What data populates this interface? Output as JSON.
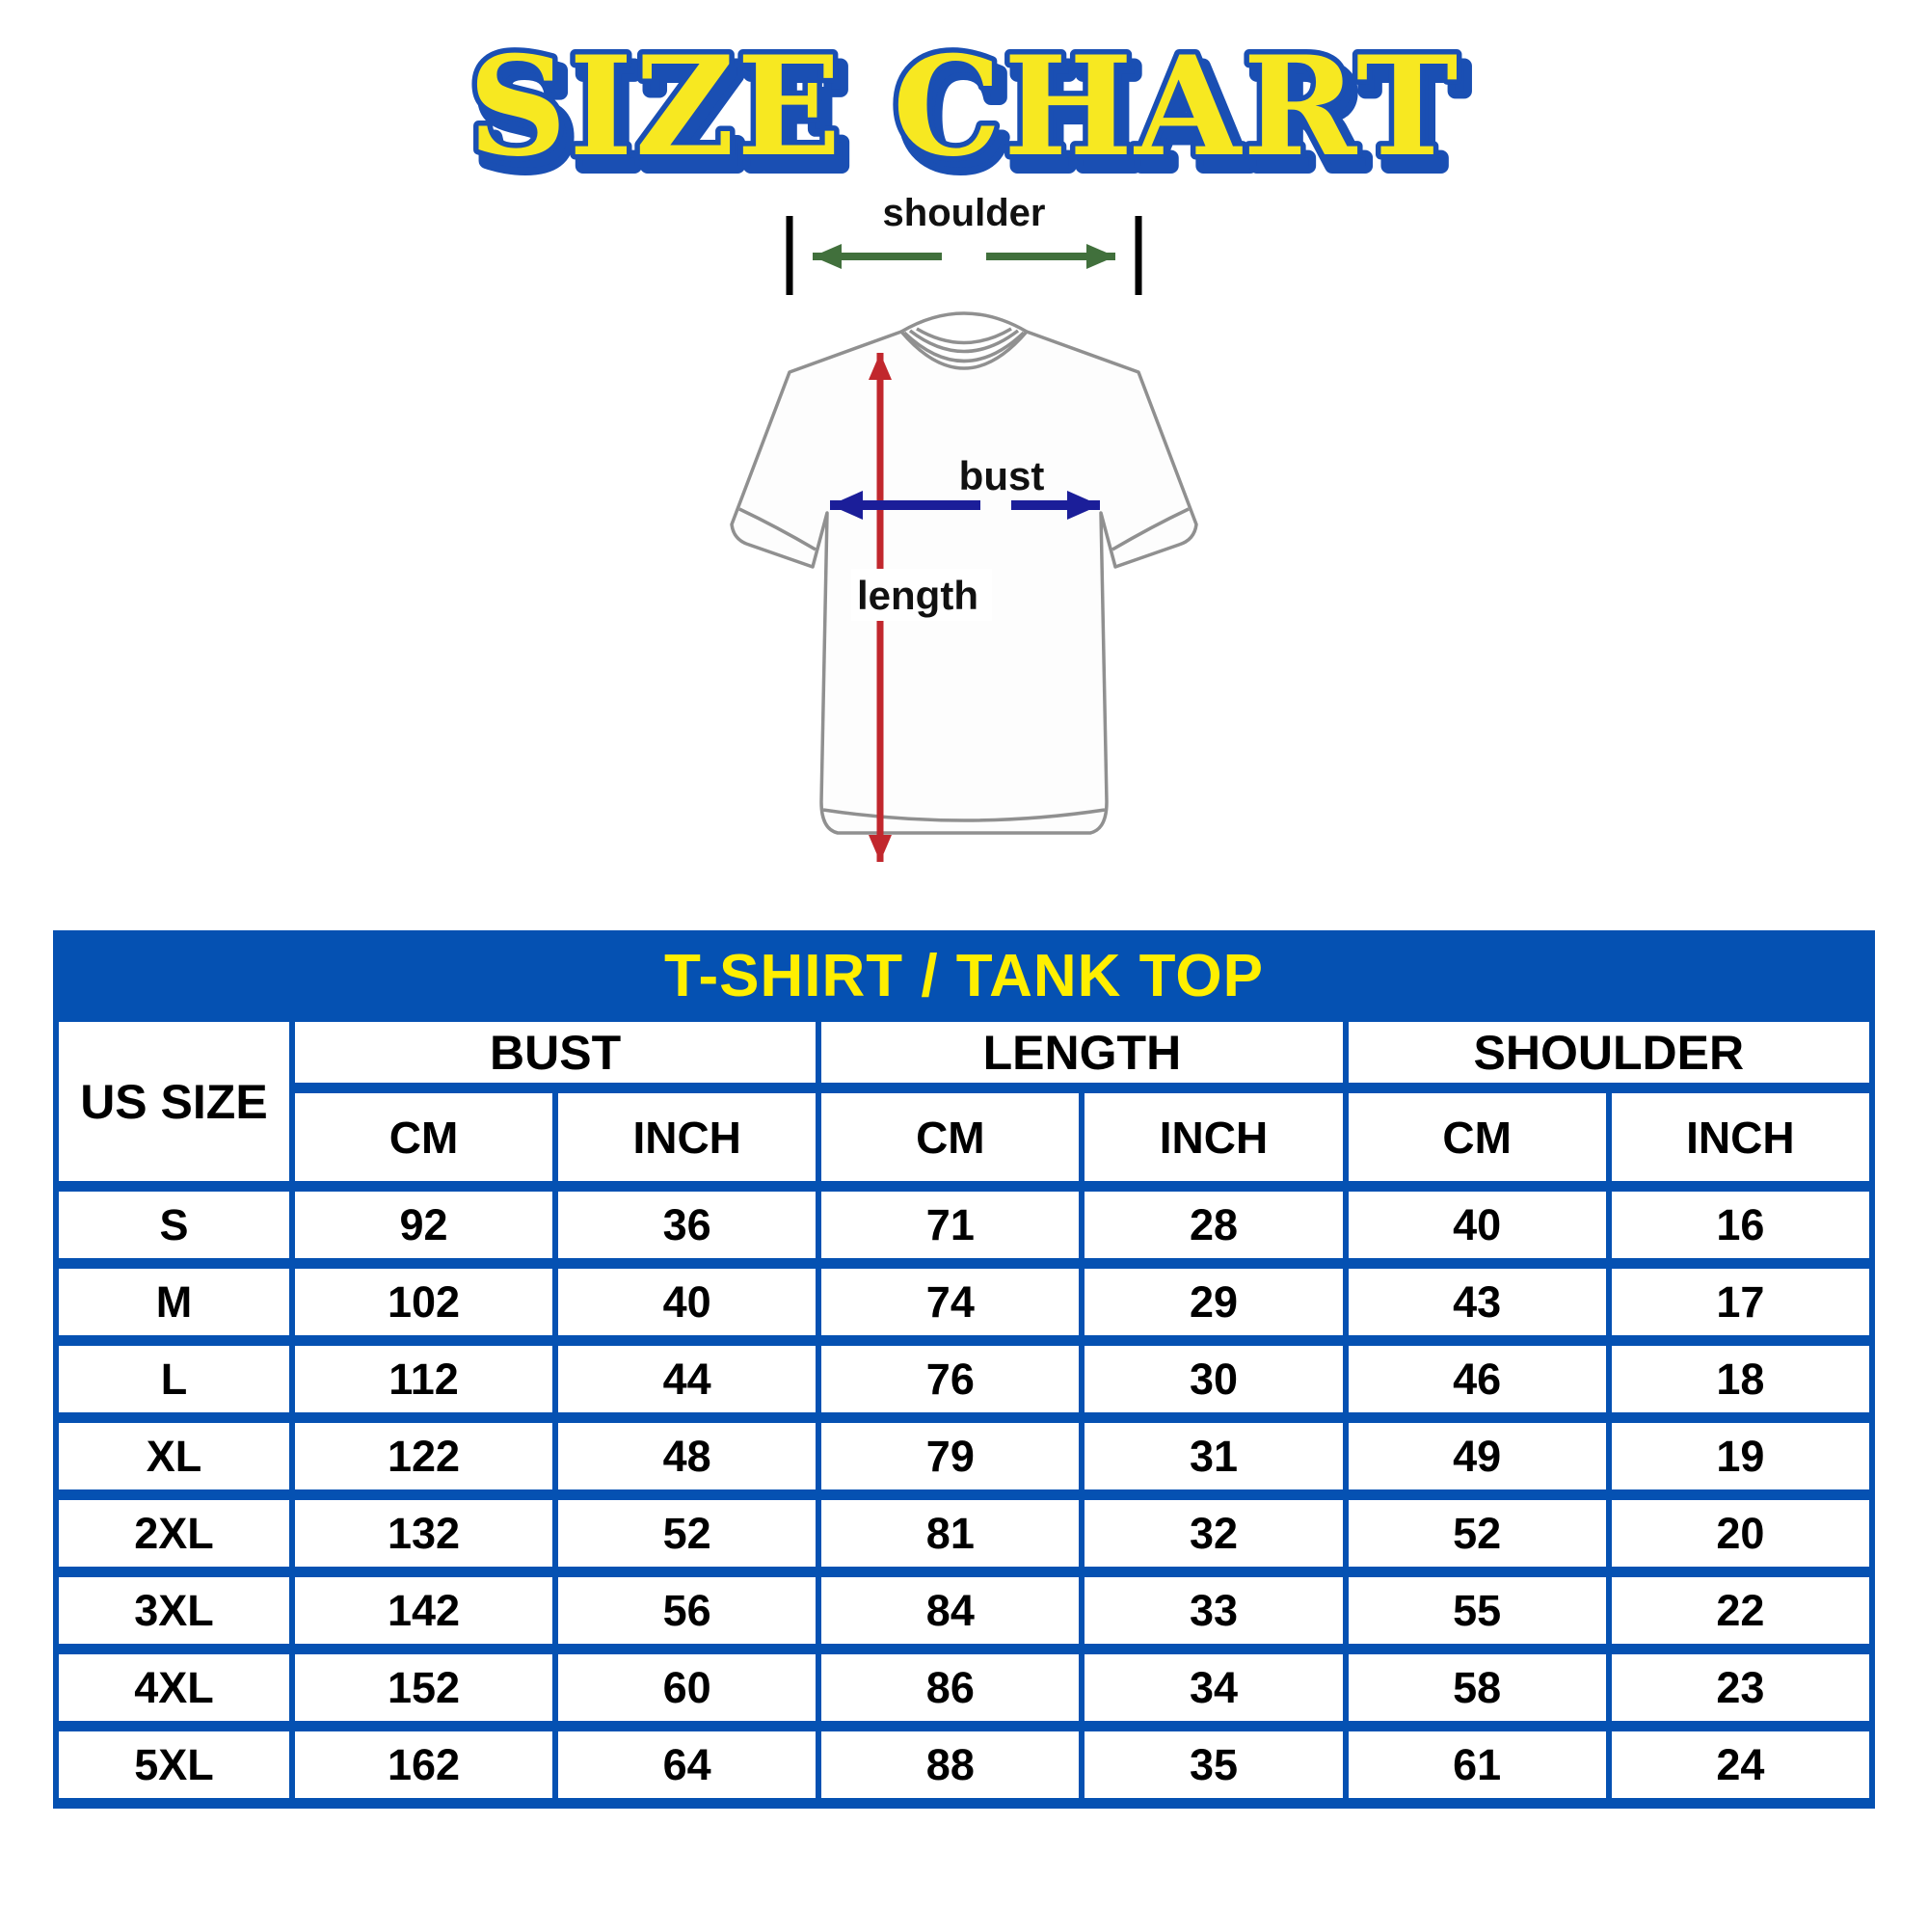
{
  "title": "SIZE CHART",
  "diagram": {
    "shoulder_label": "shoulder",
    "bust_label": "bust",
    "length_label": "length"
  },
  "table": {
    "title": "T-SHIRT / TANK TOP",
    "size_column_header": "US SIZE",
    "measure_groups": [
      "BUST",
      "LENGTH",
      "SHOULDER"
    ],
    "unit_row": [
      "CM",
      "INCH",
      "CM",
      "INCH",
      "CM",
      "INCH"
    ],
    "rows": [
      {
        "size": "S",
        "values": [
          "92",
          "36",
          "71",
          "28",
          "40",
          "16"
        ]
      },
      {
        "size": "M",
        "values": [
          "102",
          "40",
          "74",
          "29",
          "43",
          "17"
        ]
      },
      {
        "size": "L",
        "values": [
          "112",
          "44",
          "76",
          "30",
          "46",
          "18"
        ]
      },
      {
        "size": "XL",
        "values": [
          "122",
          "48",
          "79",
          "31",
          "49",
          "19"
        ]
      },
      {
        "size": "2XL",
        "values": [
          "132",
          "52",
          "81",
          "32",
          "52",
          "20"
        ]
      },
      {
        "size": "3XL",
        "values": [
          "142",
          "56",
          "84",
          "33",
          "55",
          "22"
        ]
      },
      {
        "size": "4XL",
        "values": [
          "152",
          "60",
          "86",
          "34",
          "58",
          "23"
        ]
      },
      {
        "size": "5XL",
        "values": [
          "162",
          "64",
          "88",
          "35",
          "61",
          "24"
        ]
      }
    ]
  },
  "colors": {
    "table_blue": "#0551b2",
    "band_text_yellow": "#ffef00",
    "title_fill_yellow": "#f7e821",
    "title_outline_blue": "#1a4fb3",
    "length_arrow_red": "#c1272d",
    "bust_arrow_navy": "#1b1e99",
    "shoulder_arrow_green": "#41703c",
    "shirt_outline_gray": "#909090"
  },
  "chart_data": {
    "type": "table",
    "title": "T-SHIRT / TANK TOP",
    "columns": [
      "US SIZE",
      "BUST CM",
      "BUST INCH",
      "LENGTH CM",
      "LENGTH INCH",
      "SHOULDER CM",
      "SHOULDER INCH"
    ],
    "rows": [
      [
        "S",
        92,
        36,
        71,
        28,
        40,
        16
      ],
      [
        "M",
        102,
        40,
        74,
        29,
        43,
        17
      ],
      [
        "L",
        112,
        44,
        76,
        30,
        46,
        18
      ],
      [
        "XL",
        122,
        48,
        79,
        31,
        49,
        19
      ],
      [
        "2XL",
        132,
        52,
        81,
        32,
        52,
        20
      ],
      [
        "3XL",
        142,
        56,
        84,
        33,
        55,
        22
      ],
      [
        "4XL",
        152,
        60,
        86,
        34,
        58,
        23
      ],
      [
        "5XL",
        162,
        64,
        88,
        35,
        61,
        24
      ]
    ]
  }
}
